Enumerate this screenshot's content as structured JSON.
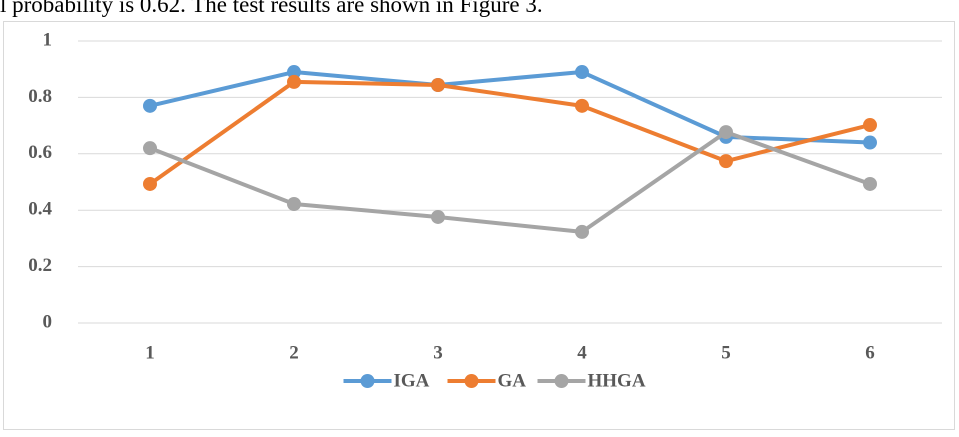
{
  "text": "l probability is 0.62. The test results are shown in Figure 3.",
  "chart_data": {
    "type": "line",
    "categories": [
      "1",
      "2",
      "3",
      "4",
      "5",
      "6"
    ],
    "series": [
      {
        "name": "IGA",
        "color": "#5b9bd5",
        "values": [
          0.77,
          0.89,
          0.844,
          0.89,
          0.66,
          0.64
        ]
      },
      {
        "name": "GA",
        "color": "#ed7d31",
        "values": [
          0.493,
          0.855,
          0.844,
          0.77,
          0.574,
          0.702
        ]
      },
      {
        "name": "HHGA",
        "color": "#a5a5a5",
        "values": [
          0.62,
          0.422,
          0.376,
          0.323,
          0.677,
          0.493
        ]
      }
    ],
    "ylim": [
      0,
      1
    ],
    "yticks": [
      0,
      {
        "value": 0.2,
        "label": "0.2"
      },
      {
        "value": 0.4,
        "label": "0.4"
      },
      {
        "value": 0.6,
        "label": "0.6"
      },
      {
        "value": 0.8,
        "label": "0.8"
      },
      1
    ],
    "grid": true,
    "legend": "bottom"
  }
}
